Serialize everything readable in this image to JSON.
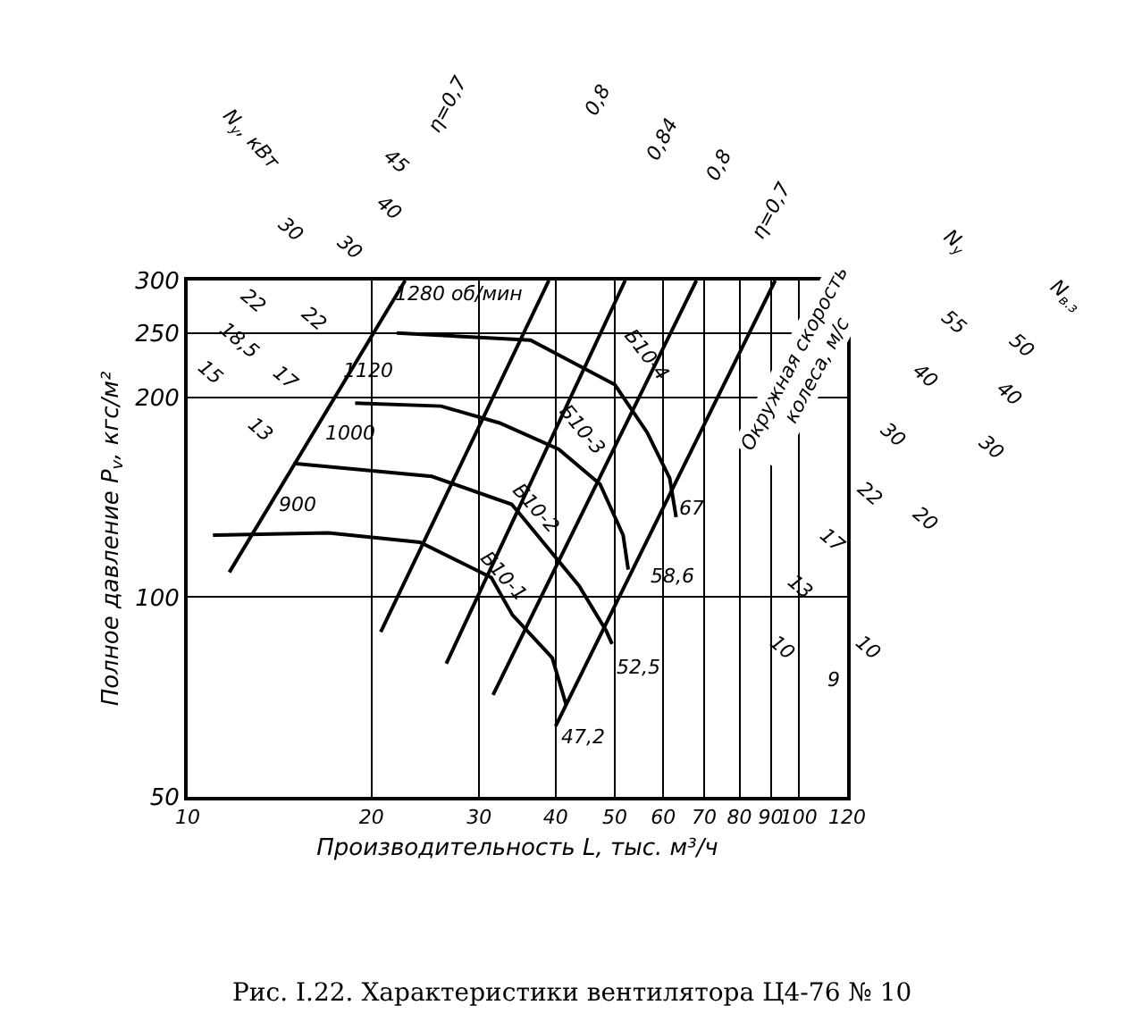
{
  "chart_data": {
    "type": "line",
    "xlabel": "Производительность L, тыс. м³/ч",
    "ylabel": "Полное давление P$_{v}$, кгс/м²",
    "log": "xy",
    "grid": true,
    "marker": "none",
    "xlim": [
      10,
      120
    ],
    "xticks": [
      10,
      20,
      30,
      40,
      50,
      60,
      70,
      80,
      90,
      100,
      120
    ],
    "ylim": [
      50,
      300
    ],
    "yticks": [
      50,
      100,
      200,
      250,
      300
    ],
    "series": [
      {
        "color": "#000000",
        "x": [
          11,
          17,
          24,
          29,
          31.4,
          34,
          39.5,
          41.6
        ],
        "values": [
          124,
          125,
          121,
          111,
          107,
          94,
          81,
          69
        ]
      },
      {
        "color": "#000000",
        "x": [
          14.9,
          25.1,
          33.9,
          35.3,
          43.7,
          48.4,
          49.5
        ],
        "values": [
          159,
          152,
          138,
          132,
          104,
          89,
          85
        ]
      },
      {
        "color": "#000000",
        "x": [
          18.8,
          26,
          32.4,
          40.5,
          47.3,
          51.6,
          52.6
        ],
        "values": [
          196,
          194,
          183,
          167,
          148,
          124,
          110
        ]
      },
      {
        "color": "#000000",
        "x": [
          22,
          36.4,
          50,
          56.5,
          61.5,
          63
        ],
        "values": [
          250,
          244,
          209,
          177,
          151,
          132
        ]
      },
      {
        "color": "#000000",
        "x": [
          11.7,
          22.7
        ],
        "values": [
          109,
          300
        ]
      },
      {
        "color": "#000000",
        "x": [
          20.7,
          39
        ],
        "values": [
          88.6,
          300
        ]
      },
      {
        "color": "#000000",
        "x": [
          26.5,
          52
        ],
        "values": [
          79.4,
          300
        ]
      },
      {
        "color": "#000000",
        "x": [
          31.6,
          68
        ],
        "values": [
          71.2,
          300
        ]
      },
      {
        "color": "#000000",
        "x": [
          40,
          91.5
        ],
        "values": [
          63.9,
          300
        ]
      }
    ],
    "annotations": [
      "900",
      "1000",
      "1120",
      "1280 об/мин",
      "Б10-1",
      "Б10-2",
      "Б10-3",
      "Б10-4",
      "67",
      "58,6",
      "52,5",
      "47,2",
      "Окружная скорость колеса, м/с",
      "N$_{у}$, кВт",
      "45",
      "40",
      "30",
      "30",
      "22",
      "22",
      "18,5",
      "17",
      "15",
      "13",
      "N$_{у}$",
      "N$_{в.з}$",
      "55",
      "40",
      "30",
      "22",
      "17",
      "13",
      "10",
      "50",
      "40",
      "30",
      "20",
      "10",
      "9",
      "η=0,7",
      "0,8",
      "0,84",
      "0,8",
      "η=0,7",
      "Рис. I.22. Характеристики вентилятора Ц4-76 № 10"
    ]
  }
}
